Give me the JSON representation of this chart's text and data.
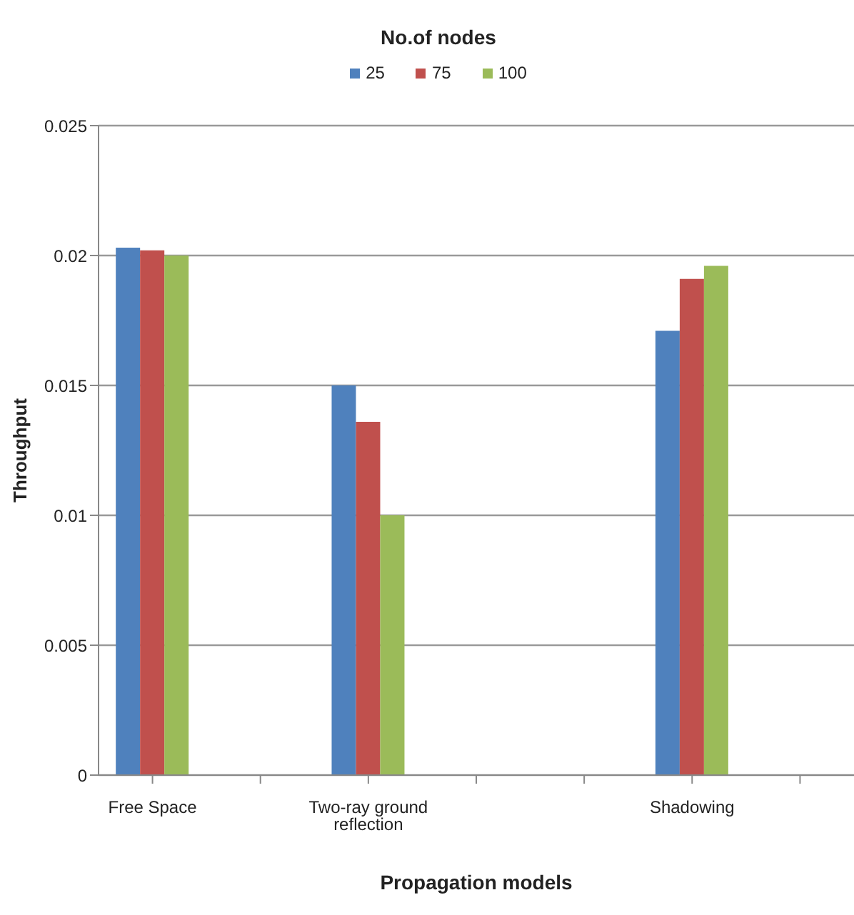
{
  "chart_data": {
    "type": "bar",
    "xlabel": "Propagation models",
    "ylabel": "Throughput",
    "legend_title": "No.of nodes",
    "categories": [
      "Free Space",
      null,
      "Two-ray ground reflection",
      null,
      null,
      "Shadowing",
      null
    ],
    "series": [
      {
        "name": "25",
        "color": "#4f81bd",
        "values": [
          0.0203,
          null,
          0.015,
          null,
          null,
          0.0171,
          null
        ]
      },
      {
        "name": "75",
        "color": "#c0504d",
        "values": [
          0.0202,
          null,
          0.0136,
          null,
          null,
          0.0191,
          null
        ]
      },
      {
        "name": "100",
        "color": "#9bbb59",
        "values": [
          0.02,
          null,
          0.01,
          null,
          null,
          0.0196,
          null
        ]
      }
    ],
    "ylim": [
      0,
      0.025
    ],
    "yticks": [
      0,
      0.005,
      0.01,
      0.015,
      0.02,
      0.025
    ],
    "grid": "y",
    "legend": "top"
  }
}
